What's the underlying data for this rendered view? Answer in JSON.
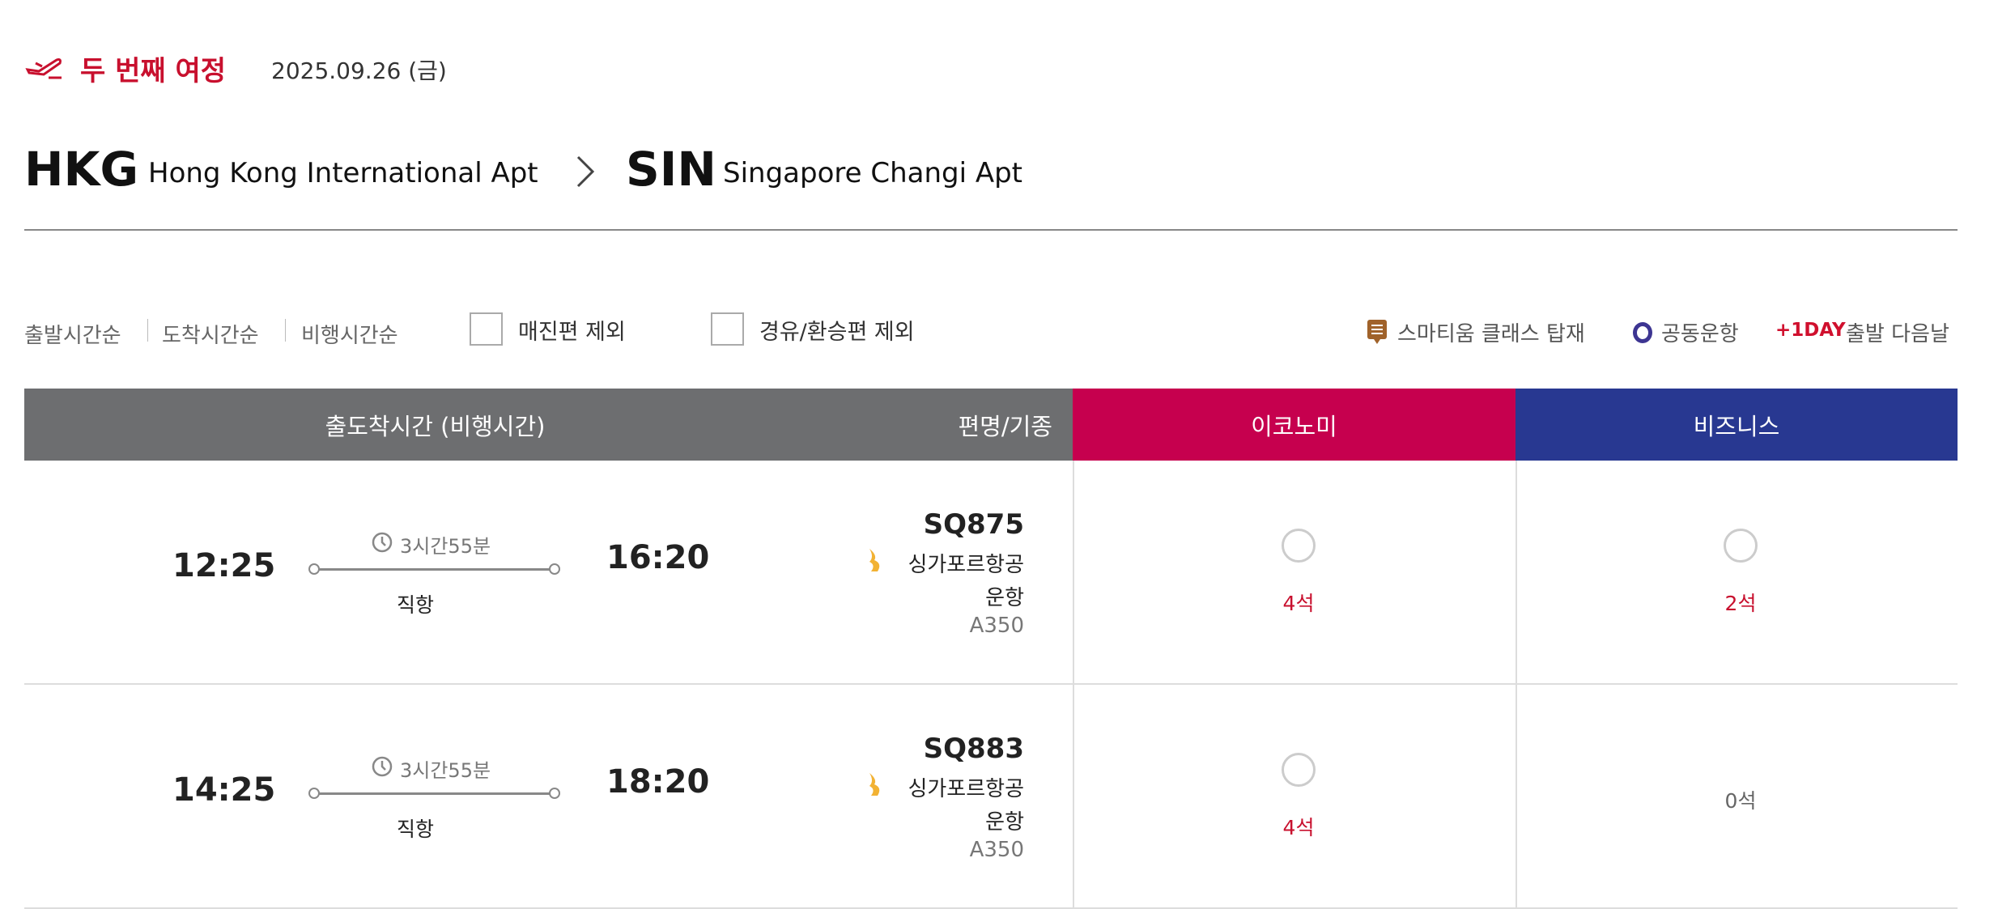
{
  "header": {
    "title": "두 번째 여정",
    "date": "2025.09.26 (금)",
    "icon": "plane-departure-icon"
  },
  "route": {
    "from_code": "HKG",
    "from_name": "Hong Kong International Apt",
    "to_code": "SIN",
    "to_name": "Singapore Changi Apt"
  },
  "sort": [
    "출발시간순",
    "도착시간순",
    "비행시간순"
  ],
  "filters": [
    {
      "label": "매진편 제외",
      "checked": false
    },
    {
      "label": "경유/환승편 제외",
      "checked": false
    }
  ],
  "legend": {
    "smartium": "스마티움 클래스 탑재",
    "codeshare": "공동운항",
    "plus_day": "+1DAY",
    "plus_day_desc": "출발 다음날"
  },
  "table": {
    "col_time": "출도착시간 (비행시간)",
    "col_flight": "편명/기종",
    "col_economy": "이코노미",
    "col_business": "비즈니스"
  },
  "colors": {
    "brand_red": "#c8102e",
    "economy": "#c6004e",
    "business": "#283891",
    "header_grey": "#6d6e70"
  },
  "flights": [
    {
      "dep": "12:25",
      "arr": "16:20",
      "duration": "3시간55분",
      "type": "직항",
      "flight_no": "SQ875",
      "airline": "싱가포르항공",
      "operated": "운항",
      "aircraft": "A350",
      "economy_seats": "4석",
      "business_seats": "2석",
      "business_available": true
    },
    {
      "dep": "14:25",
      "arr": "18:20",
      "duration": "3시간55분",
      "type": "직항",
      "flight_no": "SQ883",
      "airline": "싱가포르항공",
      "operated": "운항",
      "aircraft": "A350",
      "economy_seats": "4석",
      "business_seats": "0석",
      "business_available": false
    }
  ]
}
